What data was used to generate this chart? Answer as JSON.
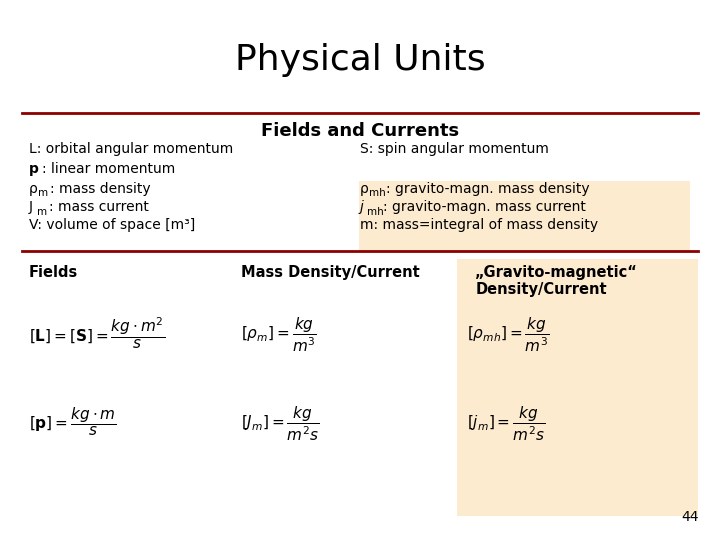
{
  "title": "Physical Units",
  "title_fontsize": 26,
  "bg_color": "#ffffff",
  "section_header": "Fields and Currents",
  "dark_red": "#8B0000",
  "peach_bg": "#FDEBD0",
  "text_color": "#000000",
  "page_number": "44"
}
